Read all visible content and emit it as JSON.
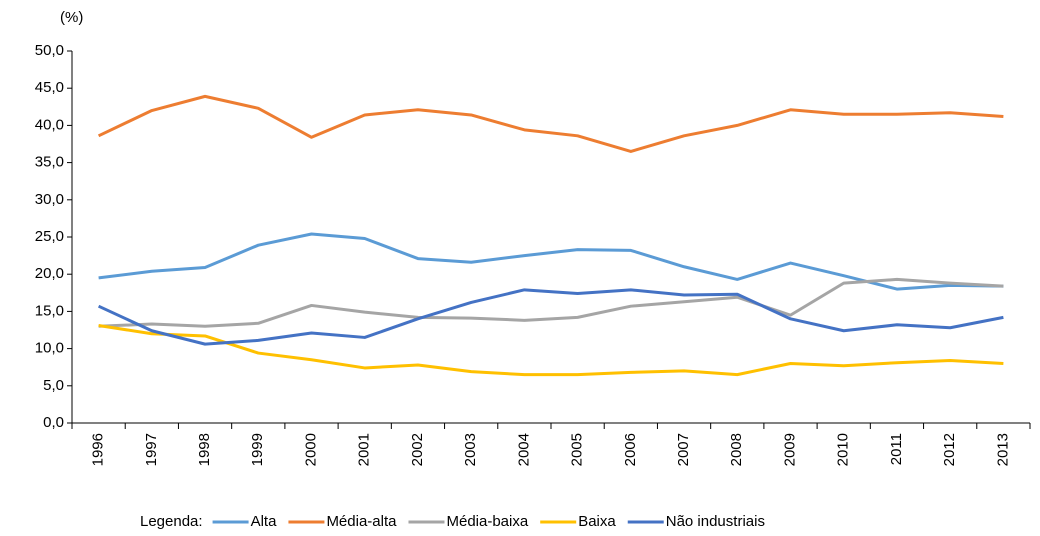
{
  "chart_data": {
    "type": "line",
    "y_label": "(%)",
    "legend_title": "Legenda:",
    "categories": [
      "1996",
      "1997",
      "1998",
      "1999",
      "2000",
      "2001",
      "2002",
      "2003",
      "2004",
      "2005",
      "2006",
      "2007",
      "2008",
      "2009",
      "2010",
      "2011",
      "2012",
      "2013"
    ],
    "series": [
      {
        "name": "Alta",
        "color": "#5b9bd5",
        "values": [
          19.5,
          20.4,
          20.9,
          23.9,
          25.4,
          24.8,
          22.1,
          21.6,
          22.5,
          23.3,
          23.2,
          21.0,
          19.3,
          21.5,
          19.8,
          18.0,
          18.5,
          18.4
        ]
      },
      {
        "name": "Média-alta",
        "color": "#ed7d31",
        "values": [
          38.6,
          42.0,
          43.9,
          42.3,
          38.4,
          41.4,
          42.1,
          41.4,
          39.4,
          38.6,
          36.5,
          38.6,
          40.0,
          42.1,
          41.5,
          41.5,
          41.7,
          41.2
        ]
      },
      {
        "name": "Média-baixa",
        "color": "#a5a5a5",
        "values": [
          13.0,
          13.3,
          13.0,
          13.4,
          15.8,
          14.9,
          14.2,
          14.1,
          13.8,
          14.2,
          15.7,
          16.3,
          16.9,
          14.5,
          18.8,
          19.3,
          18.8,
          18.4
        ]
      },
      {
        "name": "Baixa",
        "color": "#ffc000",
        "values": [
          13.1,
          12.0,
          11.7,
          9.4,
          8.5,
          7.4,
          7.8,
          6.9,
          6.5,
          6.5,
          6.8,
          7.0,
          6.5,
          8.0,
          7.7,
          8.1,
          8.4,
          8.0
        ]
      },
      {
        "name": "Não industriais",
        "color": "#4472c4",
        "values": [
          15.7,
          12.4,
          10.6,
          11.1,
          12.1,
          11.5,
          14.0,
          16.2,
          17.9,
          17.4,
          17.9,
          17.2,
          17.3,
          14.0,
          12.4,
          13.2,
          12.8,
          14.2
        ]
      }
    ],
    "ylim": [
      0,
      50
    ],
    "yticks": [
      {
        "value": 0,
        "label": "0,0"
      },
      {
        "value": 5,
        "label": "5,0"
      },
      {
        "value": 10,
        "label": "10,0"
      },
      {
        "value": 15,
        "label": "15,0"
      },
      {
        "value": 20,
        "label": "20,0"
      },
      {
        "value": 25,
        "label": "25,0"
      },
      {
        "value": 30,
        "label": "30,0"
      },
      {
        "value": 35,
        "label": "35,0"
      },
      {
        "value": 40,
        "label": "40,0"
      },
      {
        "value": 45,
        "label": "45,0"
      },
      {
        "value": 50,
        "label": "50,0"
      }
    ],
    "grid": false,
    "legend": "bottom"
  }
}
